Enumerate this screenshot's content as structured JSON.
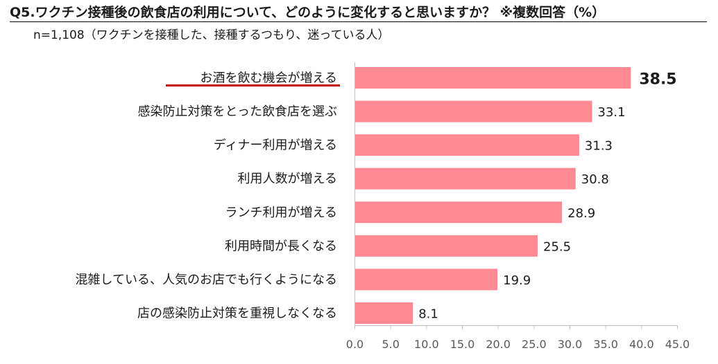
{
  "title": "Q5.ワクチン接種後の飲食店の利用について、どのように変化すると思いますか？ ※複数回答（%）",
  "subtitle": "n=1,108（ワクチンを接種した、接種するつもり、迷っている人）",
  "colors": {
    "bar": "#ff8a94",
    "underline": "#c00000",
    "axis": "#bfbfbf"
  },
  "chart_data": {
    "type": "bar",
    "orientation": "horizontal",
    "categories": [
      "お酒を飲む機会が増える",
      "感染防止対策をとった飲食店を選ぶ",
      "ディナー利用が増える",
      "利用人数が増える",
      "ランチ利用が増える",
      "利用時間が長くなる",
      "混雑している、人気のお店でも行くようになる",
      "店の感染防止対策を重視しなくなる"
    ],
    "values": [
      38.5,
      33.1,
      31.3,
      30.8,
      28.9,
      25.5,
      19.9,
      8.1
    ],
    "value_labels": [
      "38.5",
      "33.1",
      "31.3",
      "30.8",
      "28.9",
      "25.5",
      "19.9",
      "8.1"
    ],
    "highlight_category": "お酒を飲む機会が増える",
    "xlim": [
      0,
      45
    ],
    "ticks": [
      "0.0",
      "5.0",
      "10.0",
      "15.0",
      "20.0",
      "25.0",
      "30.0",
      "35.0",
      "40.0",
      "45.0"
    ],
    "grid": false,
    "legend": "none"
  }
}
